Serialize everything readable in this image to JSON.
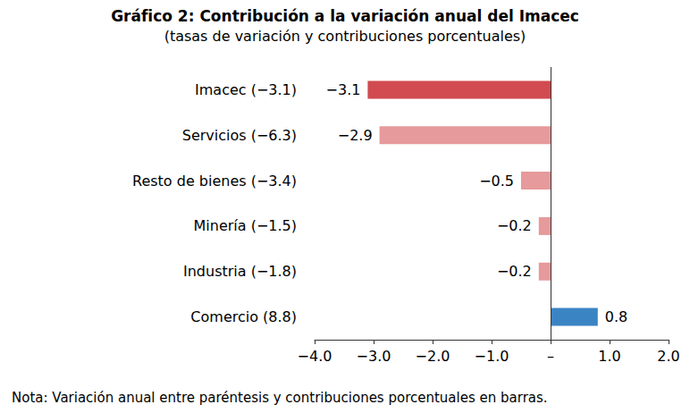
{
  "chart_data": {
    "type": "bar",
    "orientation": "horizontal",
    "title": "Gráfico 2: Contribución a la variación anual del Imacec",
    "subtitle": "(tasas de variación y contribuciones porcentuales)",
    "note": "Nota: Variación anual entre paréntesis y contribuciones porcentuales en barras.",
    "categories": [
      "Imacec (−3.1)",
      "Servicios (−6.3)",
      "Resto de bienes (−3.4)",
      "Minería (−1.5)",
      "Industria (−1.8)",
      "Comercio (8.8)"
    ],
    "values": [
      -3.1,
      -2.9,
      -0.5,
      -0.2,
      -0.2,
      0.8
    ],
    "value_labels": [
      "−3.1",
      "−2.9",
      "−0.5",
      "−0.2",
      "−0.2",
      "0.8"
    ],
    "colors": [
      "#d14b50",
      "#e69a9b",
      "#e69a9b",
      "#e69a9b",
      "#e69a9b",
      "#3b84c3"
    ],
    "xlim": [
      -4,
      2
    ],
    "xticks": [
      {
        "value": -4,
        "label": "−4.0"
      },
      {
        "value": -3,
        "label": "−3.0"
      },
      {
        "value": -2,
        "label": "−2.0"
      },
      {
        "value": -1,
        "label": "−1.0"
      },
      {
        "value": 0,
        "label": "–"
      },
      {
        "value": 1,
        "label": "1.0"
      },
      {
        "value": 2,
        "label": "2.0"
      }
    ],
    "grid": false,
    "data_labels": true
  }
}
